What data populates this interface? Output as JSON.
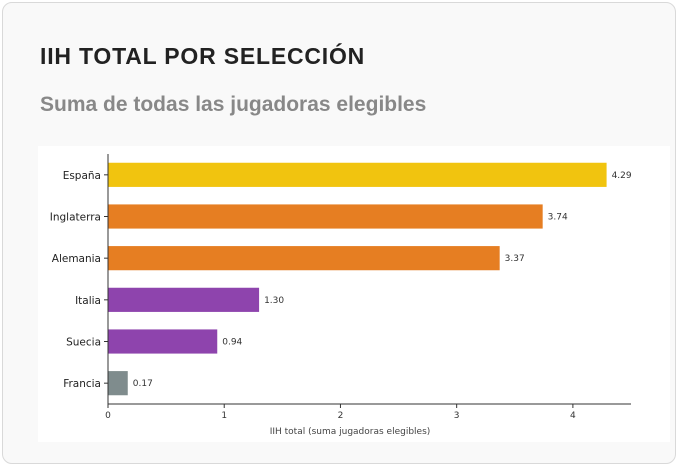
{
  "header": {
    "title": "IIH TOTAL POR SELECCIÓN",
    "subtitle": "Suma de todas las jugadoras elegibles"
  },
  "chart_data": {
    "type": "bar",
    "orientation": "horizontal",
    "categories": [
      "España",
      "Inglaterra",
      "Alemania",
      "Italia",
      "Suecia",
      "Francia"
    ],
    "values": [
      4.29,
      3.74,
      3.37,
      1.3,
      0.94,
      0.17
    ],
    "value_labels": [
      "4.29",
      "3.74",
      "3.37",
      "1.30",
      "0.94",
      "0.17"
    ],
    "colors": [
      "#f1c40f",
      "#e67e22",
      "#e67e22",
      "#8e44ad",
      "#8e44ad",
      "#7f8c8d"
    ],
    "xlabel": "IIH total (suma jugadoras elegibles)",
    "ylabel": "",
    "xlim": [
      0,
      4.5
    ],
    "xticks": [
      0,
      1,
      2,
      3,
      4
    ],
    "grid": false,
    "legend": "none"
  }
}
